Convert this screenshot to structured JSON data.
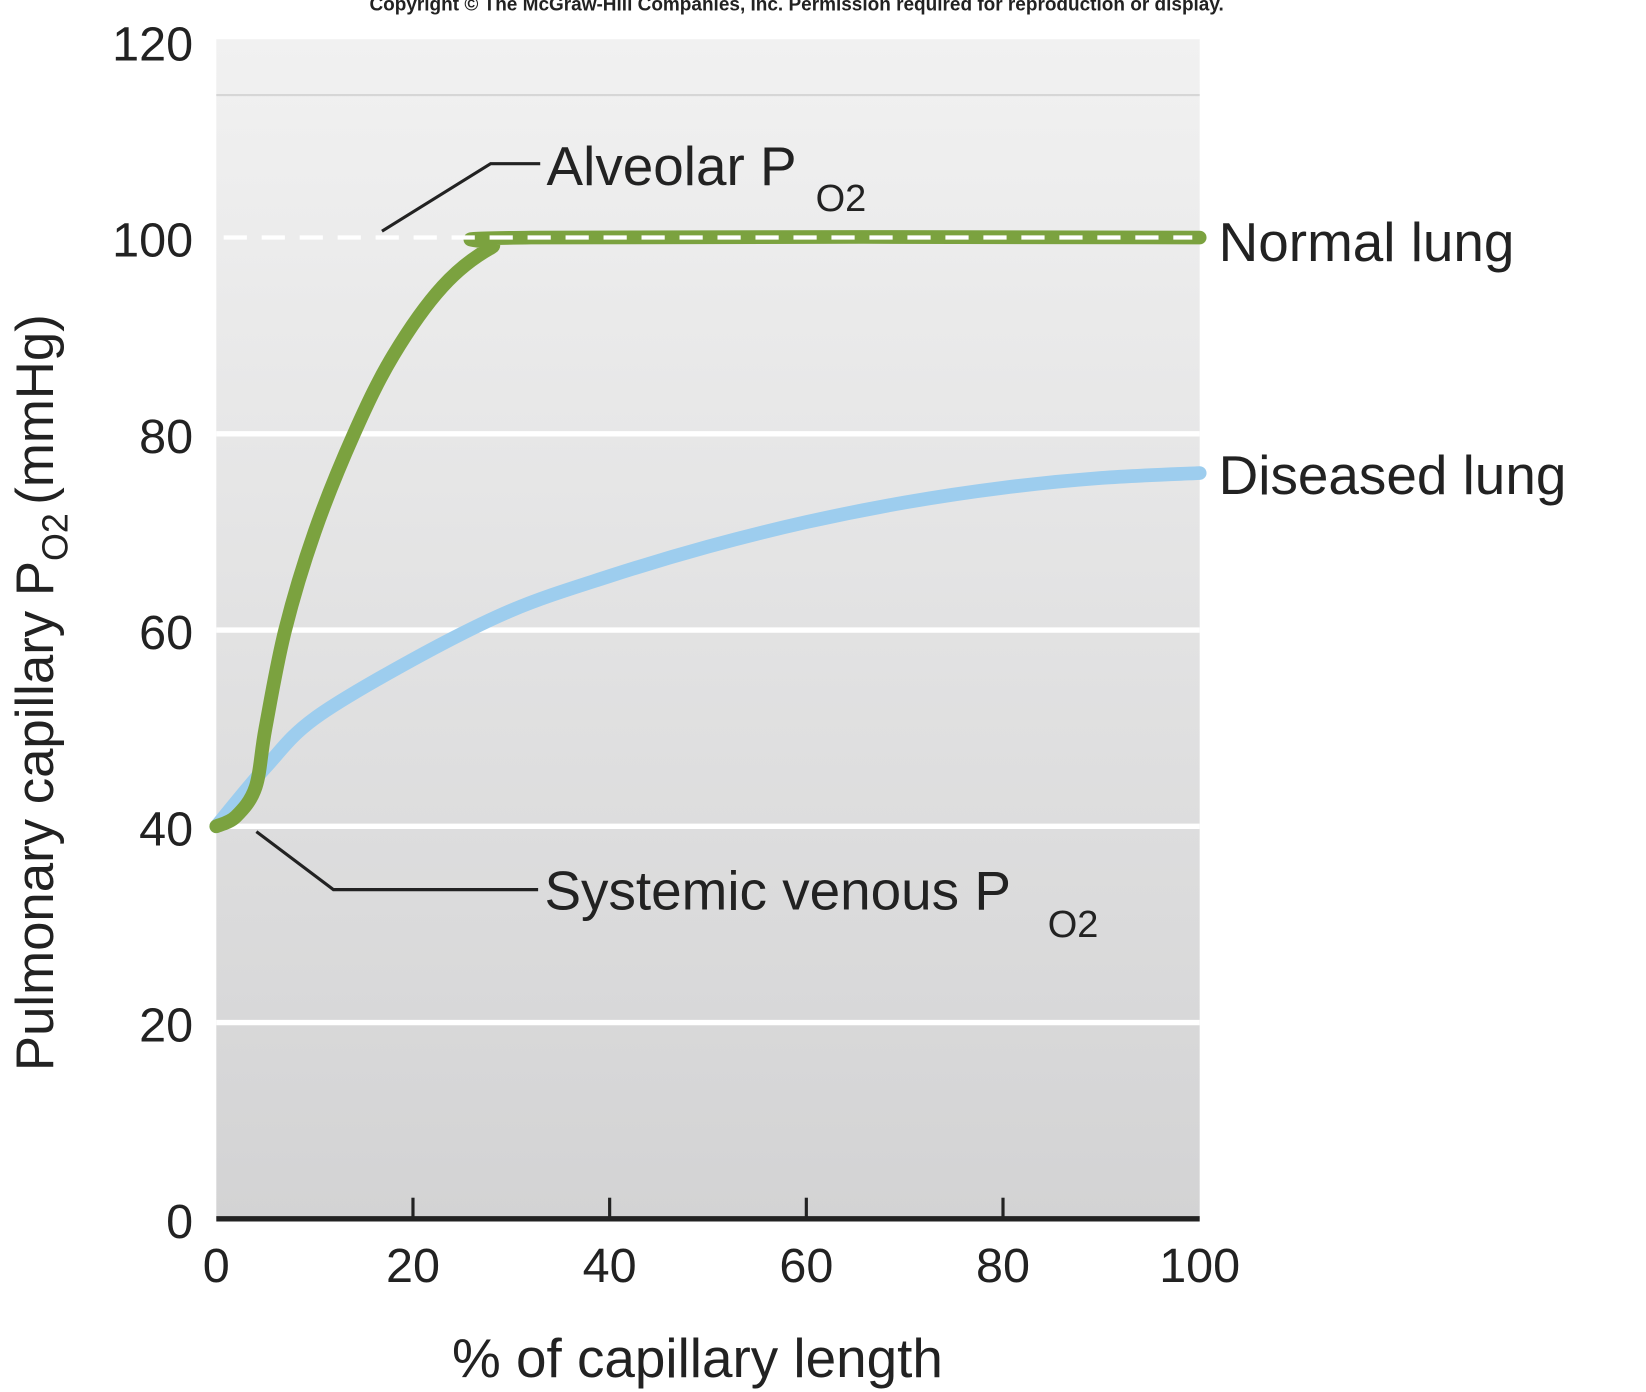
{
  "copyright": "Copyright © The McGraw-Hill Companies, Inc. Permission required for reproduction or display.",
  "chart_data": {
    "type": "line",
    "title": "",
    "xlabel": "% of capillary length",
    "ylabel": "Pulmonary capillary P",
    "ylabel_sub": "O2",
    "ylabel_unit": "(mmHg)",
    "xlim": [
      0,
      100
    ],
    "ylim": [
      0,
      120
    ],
    "xticks": [
      "0",
      "20",
      "40",
      "60",
      "80",
      "100"
    ],
    "yticks": [
      "0",
      "20",
      "40",
      "60",
      "80",
      "100",
      "120"
    ],
    "grid": true,
    "series": [
      {
        "name": "Normal lung",
        "color": "#7ba23f",
        "x": [
          0,
          2,
          4,
          5,
          7,
          10,
          14,
          18,
          23,
          28,
          32,
          100
        ],
        "y": [
          40,
          41,
          44,
          50,
          60,
          70,
          80,
          88,
          95,
          99,
          100,
          100
        ]
      },
      {
        "name": "Diseased lung",
        "color": "#9dcdee",
        "x": [
          0,
          5,
          10,
          20,
          30,
          40,
          50,
          60,
          70,
          80,
          90,
          100
        ],
        "y": [
          40,
          46,
          51,
          57,
          62,
          65.5,
          68.5,
          71,
          73,
          74.5,
          75.5,
          76
        ]
      }
    ],
    "reference_line": {
      "y": 100,
      "style": "dashed",
      "color": "#ffffff"
    },
    "annotations": [
      {
        "text": "Alveolar P",
        "sub": "O2"
      },
      {
        "text": "Systemic venous P",
        "sub": "O2"
      }
    ]
  }
}
